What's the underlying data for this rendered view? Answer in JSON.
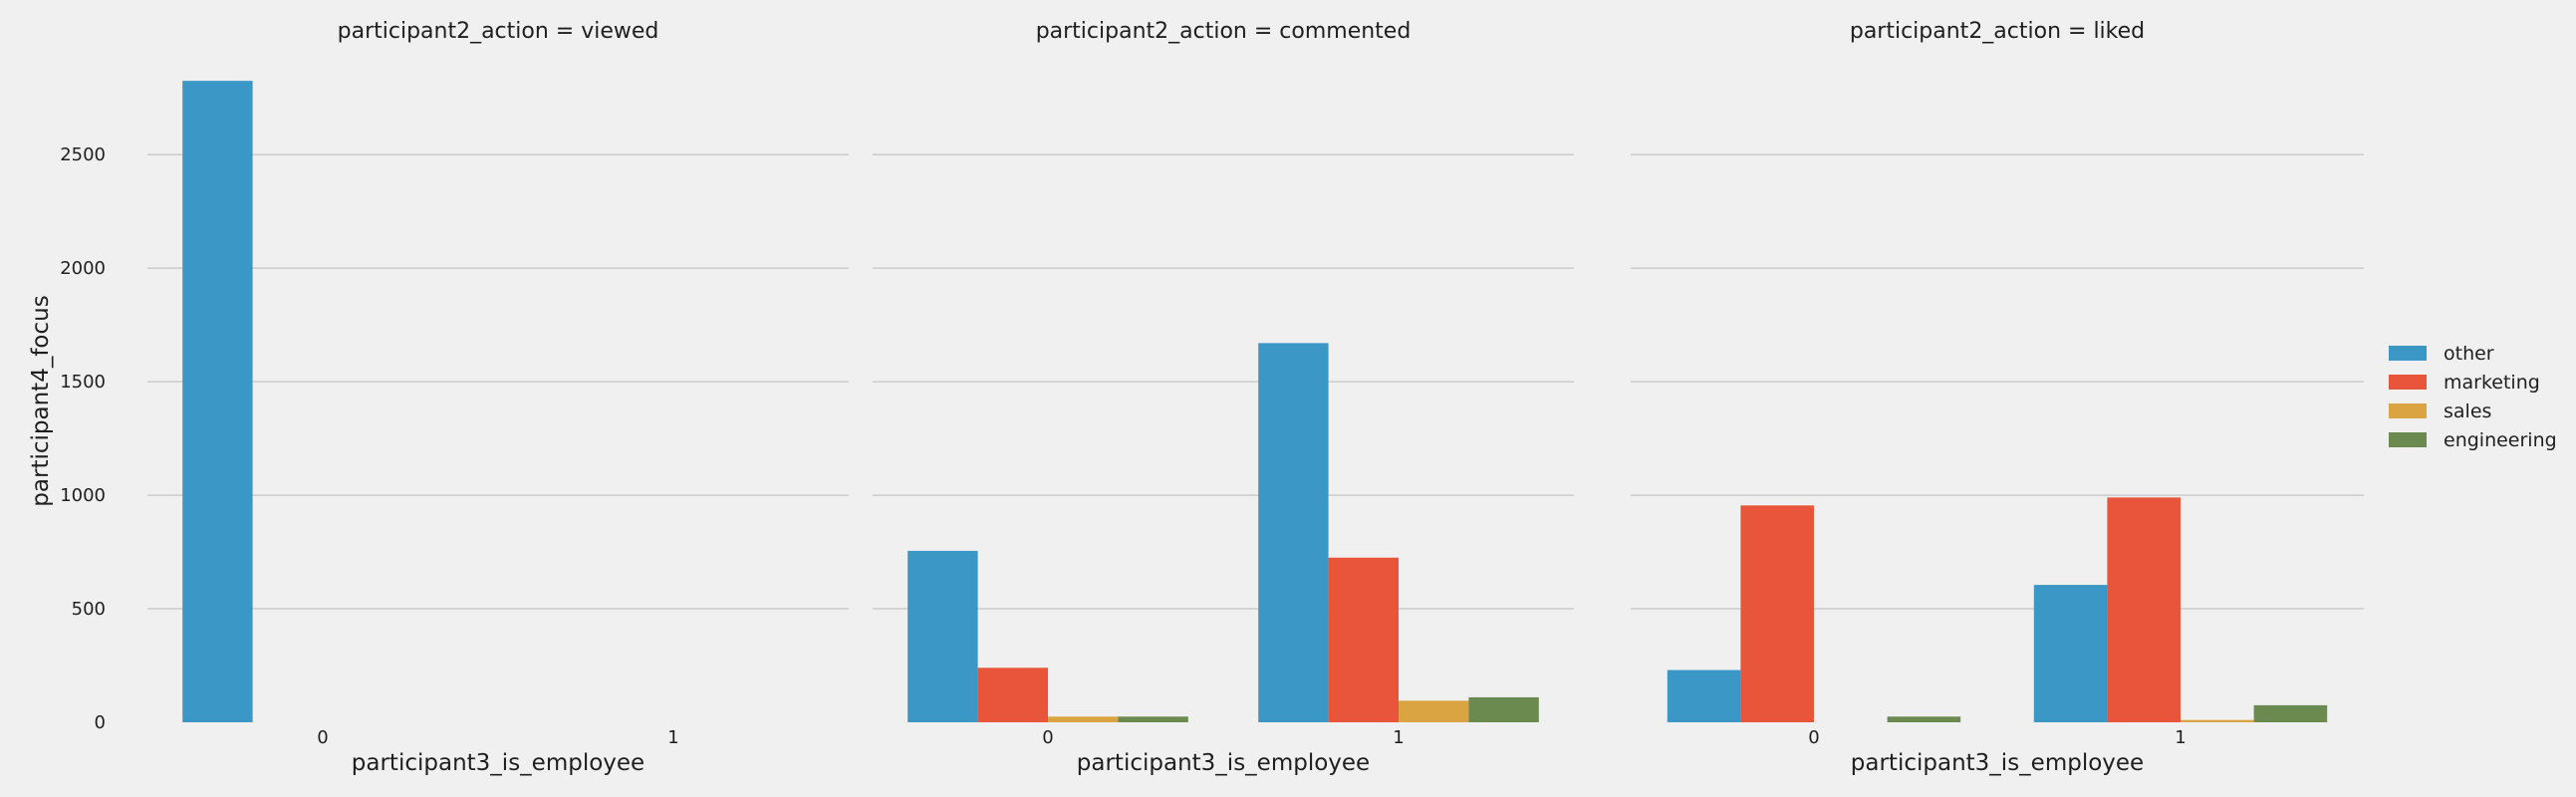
{
  "chart_data": {
    "type": "bar",
    "facet_variable": "participant2_action",
    "xlabel": "participant3_is_employee",
    "ylabel": "participant4_focus",
    "categories": [
      "0",
      "1"
    ],
    "ylim": [
      0,
      2830
    ],
    "yticks": [
      0,
      500,
      1000,
      1500,
      2000,
      2500
    ],
    "grid": true,
    "legend_position": "right",
    "legend": [
      {
        "name": "other",
        "color": "#3a97c6"
      },
      {
        "name": "marketing",
        "color": "#e8553a"
      },
      {
        "name": "sales",
        "color": "#d9a441"
      },
      {
        "name": "engineering",
        "color": "#6b8a4f"
      }
    ],
    "panels": [
      {
        "title": "participant2_action = viewed",
        "series": [
          {
            "name": "other",
            "values": [
              2825,
              0
            ]
          },
          {
            "name": "marketing",
            "values": [
              0,
              0
            ]
          },
          {
            "name": "sales",
            "values": [
              0,
              0
            ]
          },
          {
            "name": "engineering",
            "values": [
              0,
              0
            ]
          }
        ]
      },
      {
        "title": "participant2_action = commented",
        "series": [
          {
            "name": "other",
            "values": [
              755,
              1670
            ]
          },
          {
            "name": "marketing",
            "values": [
              240,
              725
            ]
          },
          {
            "name": "sales",
            "values": [
              25,
              95
            ]
          },
          {
            "name": "engineering",
            "values": [
              25,
              110
            ]
          }
        ]
      },
      {
        "title": "participant2_action = liked",
        "series": [
          {
            "name": "other",
            "values": [
              230,
              605
            ]
          },
          {
            "name": "marketing",
            "values": [
              955,
              990
            ]
          },
          {
            "name": "sales",
            "values": [
              0,
              10
            ]
          },
          {
            "name": "engineering",
            "values": [
              25,
              75
            ]
          }
        ]
      }
    ]
  }
}
